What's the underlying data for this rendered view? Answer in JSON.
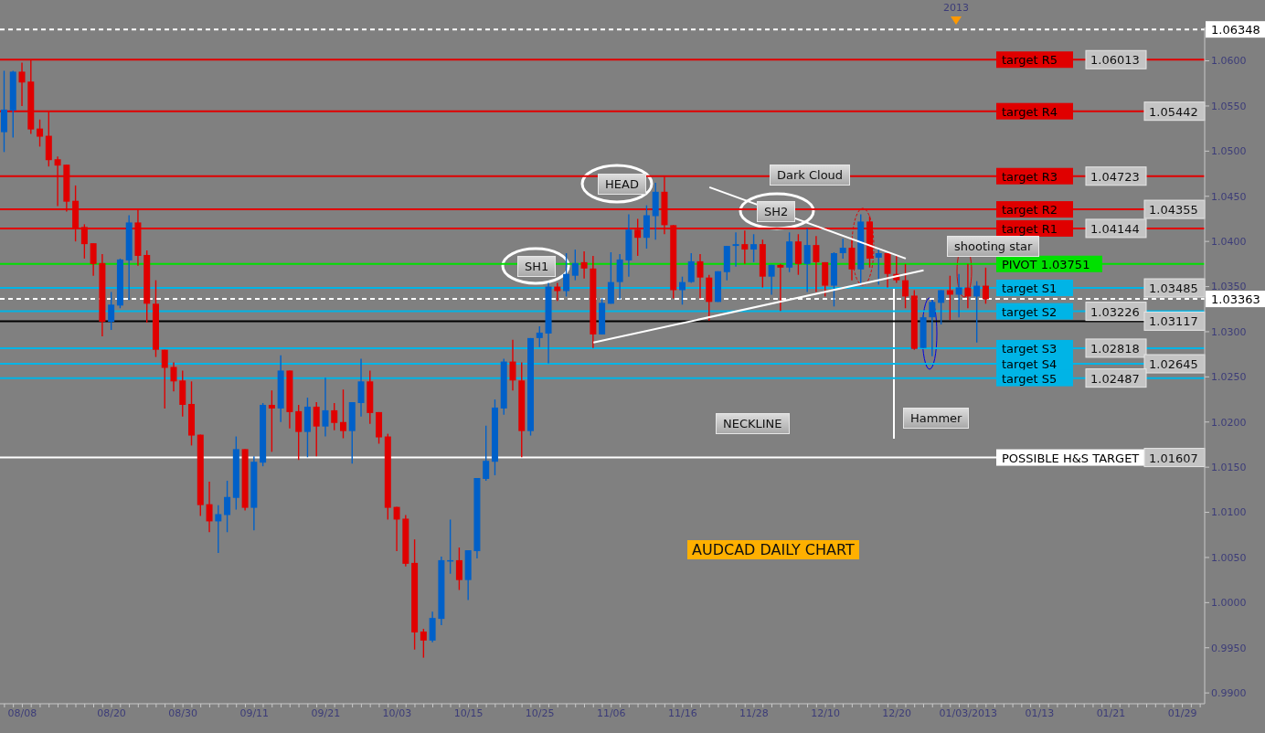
{
  "chart_data": {
    "type": "candlestick",
    "title": "AUDCAD DAILY CHART",
    "categories": [
      null,
      null,
      "08/08",
      null,
      null,
      null,
      null,
      null,
      null,
      null,
      null,
      null,
      "08/20",
      null,
      null,
      null,
      null,
      null,
      null,
      null,
      "08/30",
      null,
      null,
      null,
      null,
      null,
      null,
      null,
      "09/11",
      null,
      null,
      null,
      null,
      null,
      null,
      null,
      "09/21",
      null,
      null,
      null,
      null,
      null,
      null,
      null,
      "10/03",
      null,
      null,
      null,
      null,
      null,
      null,
      null,
      "10/15",
      null,
      null,
      null,
      null,
      null,
      null,
      null,
      "10/25",
      null,
      null,
      null,
      null,
      null,
      null,
      null,
      "11/06",
      null,
      null,
      null,
      null,
      null,
      null,
      null,
      "11/16",
      null,
      null,
      null,
      null,
      null,
      null,
      null,
      "11/28",
      null,
      null,
      null,
      null,
      null,
      null,
      null,
      "12/10",
      null,
      null,
      null,
      null,
      null,
      null,
      null,
      "12/20",
      null,
      null,
      null,
      null,
      null,
      null,
      null,
      "01/03/2013",
      null,
      null,
      null,
      null,
      null,
      null,
      null,
      "01/13",
      null,
      null,
      null,
      null,
      null,
      null,
      null,
      "01/21",
      null,
      null,
      null,
      null,
      null,
      null,
      null,
      "01/29",
      null,
      null
    ],
    "ohlc": [
      [
        1.0521,
        1.0589,
        1.0499,
        1.0546
      ],
      [
        1.0545,
        1.0589,
        1.0515,
        1.0588
      ],
      [
        1.0588,
        1.0598,
        1.055,
        1.0576
      ],
      [
        1.0577,
        1.0601,
        1.0519,
        1.0524
      ],
      [
        1.0525,
        1.0535,
        1.0505,
        1.0516
      ],
      [
        1.0517,
        1.0544,
        1.0483,
        1.049
      ],
      [
        1.0491,
        1.0494,
        1.0439,
        1.0484
      ],
      [
        1.0485,
        1.0485,
        1.0433,
        1.0444
      ],
      [
        1.0445,
        1.0462,
        1.04,
        1.0415
      ],
      [
        1.0416,
        1.0419,
        1.0381,
        1.0397
      ],
      [
        1.0398,
        1.0398,
        1.0362,
        1.0375
      ],
      [
        1.0376,
        1.0386,
        1.0295,
        1.0311
      ],
      [
        1.0311,
        1.0344,
        1.0302,
        1.033
      ],
      [
        1.0329,
        1.0381,
        1.0326,
        1.038
      ],
      [
        1.0379,
        1.0429,
        1.0335,
        1.0421
      ],
      [
        1.0421,
        1.0436,
        1.0373,
        1.0384
      ],
      [
        1.0385,
        1.039,
        1.031,
        1.0331
      ],
      [
        1.0331,
        1.0357,
        1.0272,
        1.028
      ],
      [
        1.028,
        1.028,
        1.0215,
        1.026
      ],
      [
        1.0261,
        1.0266,
        1.0234,
        1.0245
      ],
      [
        1.0246,
        1.0257,
        1.0206,
        1.0219
      ],
      [
        1.022,
        1.0245,
        1.0174,
        1.0185
      ],
      [
        1.0186,
        1.0186,
        1.0096,
        1.0108
      ],
      [
        1.0109,
        1.0134,
        1.0078,
        1.009
      ],
      [
        1.009,
        1.0108,
        1.0055,
        1.0098
      ],
      [
        1.0097,
        1.0135,
        1.0078,
        1.0117
      ],
      [
        1.0116,
        1.0184,
        1.0103,
        1.017
      ],
      [
        1.017,
        1.017,
        1.0102,
        1.0105
      ],
      [
        1.0105,
        1.0162,
        1.008,
        1.0156
      ],
      [
        1.0155,
        1.0221,
        1.0151,
        1.0219
      ],
      [
        1.0219,
        1.0235,
        1.0167,
        1.0215
      ],
      [
        1.0215,
        1.0274,
        1.02,
        1.0257
      ],
      [
        1.0257,
        1.0257,
        1.0193,
        1.0211
      ],
      [
        1.0212,
        1.0219,
        1.0158,
        1.0189
      ],
      [
        1.0189,
        1.0227,
        1.0161,
        1.0217
      ],
      [
        1.0217,
        1.0222,
        1.0162,
        1.0195
      ],
      [
        1.0195,
        1.0249,
        1.0184,
        1.0213
      ],
      [
        1.0213,
        1.0221,
        1.0191,
        1.0199
      ],
      [
        1.02,
        1.0236,
        1.0182,
        1.019
      ],
      [
        1.019,
        1.0222,
        1.0154,
        1.0222
      ],
      [
        1.0221,
        1.027,
        1.0206,
        1.0245
      ],
      [
        1.0245,
        1.0257,
        1.0198,
        1.021
      ],
      [
        1.0211,
        1.0211,
        1.0176,
        1.0183
      ],
      [
        1.0184,
        1.0187,
        1.0092,
        1.0105
      ],
      [
        1.0106,
        1.0106,
        1.0057,
        1.0092
      ],
      [
        1.0093,
        1.0097,
        1.004,
        1.0043
      ],
      [
        1.0044,
        1.007,
        0.9948,
        0.9967
      ],
      [
        0.9968,
        0.9971,
        0.9939,
        0.9958
      ],
      [
        0.9958,
        0.999,
        0.9956,
        0.9983
      ],
      [
        0.9982,
        1.0051,
        0.9975,
        1.0047
      ],
      [
        1.0046,
        1.0092,
        1.0032,
        1.0047
      ],
      [
        1.0047,
        1.0061,
        1.0014,
        1.0025
      ],
      [
        1.0025,
        1.0058,
        1.0003,
        1.0058
      ],
      [
        1.0057,
        1.0138,
        1.0049,
        1.0138
      ],
      [
        1.0137,
        1.0196,
        1.0135,
        1.0157
      ],
      [
        1.0156,
        1.0225,
        1.0141,
        1.0216
      ],
      [
        1.0215,
        1.027,
        1.0208,
        1.0267
      ],
      [
        1.0267,
        1.0291,
        1.0235,
        1.0246
      ],
      [
        1.0246,
        1.0266,
        1.0161,
        1.019
      ],
      [
        1.019,
        1.0293,
        1.0185,
        1.0293
      ],
      [
        1.0293,
        1.0306,
        1.0283,
        1.0299
      ],
      [
        1.0298,
        1.0354,
        1.0265,
        1.035
      ],
      [
        1.035,
        1.0354,
        1.0334,
        1.0345
      ],
      [
        1.0345,
        1.0387,
        1.0339,
        1.0364
      ],
      [
        1.0362,
        1.0391,
        1.0357,
        1.0376
      ],
      [
        1.0377,
        1.0389,
        1.0359,
        1.037
      ],
      [
        1.037,
        1.0384,
        1.0282,
        1.0297
      ],
      [
        1.0297,
        1.0337,
        1.0297,
        1.0332
      ],
      [
        1.0331,
        1.0388,
        1.0331,
        1.0355
      ],
      [
        1.0355,
        1.0386,
        1.0336,
        1.038
      ],
      [
        1.0379,
        1.043,
        1.0361,
        1.0413
      ],
      [
        1.0413,
        1.0425,
        1.0384,
        1.0404
      ],
      [
        1.0404,
        1.044,
        1.0392,
        1.0429
      ],
      [
        1.0428,
        1.0465,
        1.0402,
        1.0455
      ],
      [
        1.0455,
        1.0472,
        1.0408,
        1.0418
      ],
      [
        1.0418,
        1.0418,
        1.0337,
        1.0346
      ],
      [
        1.0346,
        1.0361,
        1.033,
        1.0355
      ],
      [
        1.0355,
        1.0387,
        1.0354,
        1.0378
      ],
      [
        1.0378,
        1.0386,
        1.0337,
        1.036
      ],
      [
        1.036,
        1.0363,
        1.0312,
        1.0333
      ],
      [
        1.0333,
        1.0367,
        1.0333,
        1.0367
      ],
      [
        1.0366,
        1.0395,
        1.0357,
        1.0395
      ],
      [
        1.0395,
        1.041,
        1.0372,
        1.0397
      ],
      [
        1.0397,
        1.0412,
        1.0375,
        1.0391
      ],
      [
        1.0391,
        1.0408,
        1.0377,
        1.0397
      ],
      [
        1.0397,
        1.0402,
        1.0349,
        1.0361
      ],
      [
        1.0361,
        1.0374,
        1.0341,
        1.0374
      ],
      [
        1.0374,
        1.0375,
        1.0323,
        1.0371
      ],
      [
        1.0371,
        1.041,
        1.0366,
        1.04
      ],
      [
        1.04,
        1.0408,
        1.0363,
        1.0375
      ],
      [
        1.0375,
        1.0414,
        1.0344,
        1.0396
      ],
      [
        1.0396,
        1.0406,
        1.0344,
        1.0377
      ],
      [
        1.0377,
        1.0377,
        1.0339,
        1.0351
      ],
      [
        1.0351,
        1.0388,
        1.0328,
        1.0387
      ],
      [
        1.0387,
        1.0403,
        1.0381,
        1.0393
      ],
      [
        1.0393,
        1.0402,
        1.0357,
        1.0369
      ],
      [
        1.0369,
        1.043,
        1.0351,
        1.0422
      ],
      [
        1.0422,
        1.0428,
        1.0371,
        1.0381
      ],
      [
        1.0382,
        1.0391,
        1.0352,
        1.0387
      ],
      [
        1.0387,
        1.0387,
        1.0349,
        1.0364
      ],
      [
        1.0364,
        1.0384,
        1.0354,
        1.0357
      ],
      [
        1.0357,
        1.0375,
        1.0326,
        1.0339
      ],
      [
        1.034,
        1.0346,
        1.028,
        1.0281
      ],
      [
        1.0282,
        1.0319,
        1.0282,
        1.0316
      ],
      [
        1.0316,
        1.0335,
        1.0273,
        1.0333
      ],
      [
        1.0332,
        1.0346,
        1.0308,
        1.0346
      ],
      [
        1.0346,
        1.0362,
        1.0313,
        1.0341
      ],
      [
        1.0341,
        1.0364,
        1.0316,
        1.0349
      ],
      [
        1.0349,
        1.0375,
        1.0326,
        1.0339
      ],
      [
        1.0339,
        1.0356,
        1.0288,
        1.0351
      ],
      [
        1.0351,
        1.0371,
        1.0331,
        1.0336
      ],
      null,
      null,
      null,
      null,
      null,
      null,
      null,
      null,
      null,
      null,
      null,
      null,
      null,
      null,
      null,
      null,
      null,
      null,
      null,
      null,
      null,
      null,
      null,
      null
    ],
    "colors": [
      "#0060c8",
      "#0060c8",
      "#e00000",
      "#e00000",
      "#e00000",
      "#e00000",
      "#e00000",
      "#e00000",
      "#e00000",
      "#e00000",
      "#e00000",
      "#e00000",
      "#0060c8",
      "#0060c8",
      "#0060c8",
      "#e00000",
      "#e00000",
      "#e00000",
      "#e00000",
      "#e00000",
      "#e00000",
      "#e00000",
      "#e00000",
      "#e00000",
      "#0060c8",
      "#0060c8",
      "#0060c8",
      "#e00000",
      "#0060c8",
      "#0060c8",
      "#e00000",
      "#0060c8",
      "#e00000",
      "#e00000",
      "#0060c8",
      "#e00000",
      "#0060c8",
      "#e00000",
      "#e00000",
      "#0060c8",
      "#0060c8",
      "#e00000",
      "#e00000",
      "#e00000",
      "#e00000",
      "#e00000",
      "#e00000",
      "#e00000",
      "#0060c8",
      "#0060c8",
      "#0060c8",
      "#e00000",
      "#0060c8",
      "#0060c8",
      "#0060c8",
      "#0060c8",
      "#0060c8",
      "#e00000",
      "#e00000",
      "#0060c8",
      "#0060c8",
      "#0060c8",
      "#e00000",
      "#0060c8",
      "#0060c8",
      "#e00000",
      "#e00000",
      "#0060c8",
      "#0060c8",
      "#0060c8",
      "#0060c8",
      "#e00000",
      "#0060c8",
      "#0060c8",
      "#e00000",
      "#e00000",
      "#0060c8",
      "#0060c8",
      "#e00000",
      "#e00000",
      "#0060c8",
      "#0060c8",
      "#0060c8",
      "#e00000",
      "#0060c8",
      "#e00000",
      "#0060c8",
      "#e00000",
      "#0060c8",
      "#e00000",
      "#0060c8",
      "#e00000",
      "#e00000",
      "#0060c8",
      "#0060c8",
      "#e00000",
      "#0060c8",
      "#e00000",
      "#0060c8",
      "#e00000",
      "#e00000",
      "#e00000",
      "#e00000",
      "#0060c8",
      "#0060c8",
      "#0060c8",
      "#e00000",
      "#0060c8",
      "#e00000",
      "#0060c8",
      "#e00000",
      null,
      null,
      null,
      null,
      null,
      null,
      null,
      null,
      null,
      null,
      null,
      null,
      null,
      null,
      null,
      null,
      null,
      null,
      null,
      null,
      null,
      null,
      null,
      null
    ],
    "series": [
      {
        "type": "line",
        "color": "#ffffff",
        "values": [
          null,
          null,
          null,
          null,
          null,
          null,
          null,
          null,
          null,
          null,
          null,
          null,
          null,
          null,
          null,
          null,
          null,
          null,
          null,
          null,
          null,
          null,
          null,
          null,
          null,
          null,
          null,
          null,
          null,
          null,
          null,
          null,
          null,
          null,
          null,
          null,
          null,
          null,
          null,
          null,
          null,
          null,
          null,
          null,
          null,
          null,
          null,
          null,
          null,
          null,
          null,
          null,
          null,
          null,
          null,
          null,
          null,
          null,
          null,
          null,
          null,
          null,
          null,
          null,
          null,
          null,
          null,
          null,
          null,
          null,
          null,
          null,
          null,
          null,
          null,
          null,
          null,
          null,
          null,
          1.046,
          null,
          null,
          null,
          null,
          null,
          null,
          null,
          null,
          null,
          null,
          null,
          null,
          null,
          null,
          null,
          null,
          null,
          null,
          null,
          null,
          null,
          1.0381,
          null,
          null,
          null,
          null,
          null,
          null,
          null,
          null,
          null,
          null,
          null,
          null,
          null,
          null,
          null,
          null,
          null,
          null,
          null,
          null,
          null,
          null,
          null,
          null,
          null,
          null,
          null,
          null,
          null,
          null,
          null,
          null,
          null
        ]
      },
      {
        "type": "line",
        "color": "#ffffff",
        "values": [
          null,
          null,
          null,
          null,
          null,
          null,
          null,
          null,
          null,
          null,
          null,
          null,
          null,
          null,
          null,
          null,
          null,
          null,
          null,
          null,
          null,
          null,
          null,
          null,
          null,
          null,
          null,
          null,
          null,
          null,
          null,
          null,
          null,
          null,
          null,
          null,
          null,
          null,
          null,
          null,
          null,
          null,
          null,
          null,
          null,
          null,
          null,
          null,
          null,
          null,
          null,
          null,
          null,
          null,
          null,
          null,
          null,
          null,
          null,
          null,
          null,
          null,
          null,
          null,
          null,
          null,
          1.0288,
          null,
          null,
          null,
          null,
          null,
          null,
          null,
          null,
          null,
          null,
          null,
          null,
          null,
          null,
          null,
          null,
          null,
          null,
          null,
          null,
          null,
          null,
          null,
          null,
          null,
          null,
          null,
          null,
          null,
          null,
          null,
          null,
          null,
          null,
          null,
          null,
          1.0368,
          null,
          null,
          null,
          null,
          null,
          null,
          null,
          null,
          null,
          null,
          null,
          null,
          null,
          null,
          null,
          null,
          null,
          null,
          null,
          null,
          null,
          null,
          null,
          null,
          null,
          null,
          null,
          null,
          null,
          null,
          null
        ]
      }
    ],
    "ylim": [
      0.9888,
      1.0637
    ],
    "yticks": [
      {
        "value": 0.99,
        "label": "0.9900"
      },
      {
        "value": 0.995,
        "label": "0.9950"
      },
      {
        "value": 1.0,
        "label": "1.0000"
      },
      {
        "value": 1.005,
        "label": "1.0050"
      },
      {
        "value": 1.01,
        "label": "1.0100"
      },
      {
        "value": 1.015,
        "label": "1.0150"
      },
      {
        "value": 1.02,
        "label": "1.0200"
      },
      {
        "value": 1.025,
        "label": "1.0250"
      },
      {
        "value": 1.03,
        "label": "1.0300"
      },
      {
        "value": 1.035,
        "label": "1.0350"
      },
      {
        "value": 1.04,
        "label": "1.0400"
      },
      {
        "value": 1.045,
        "label": "1.0450"
      },
      {
        "value": 1.05,
        "label": "1.0500"
      },
      {
        "value": 1.055,
        "label": "1.0550"
      },
      {
        "value": 1.06,
        "label": "1.0600"
      }
    ],
    "ref_lines": [
      {
        "axis": "y",
        "value": 1.06013,
        "label": "target R5",
        "color": "#e00000"
      },
      {
        "axis": "y",
        "value": 1.05442,
        "label": "target R4",
        "color": "#e00000"
      },
      {
        "axis": "y",
        "value": 1.04723,
        "label": "target R3",
        "color": "#e00000"
      },
      {
        "axis": "y",
        "value": 1.04355,
        "label": "target R2",
        "color": "#e00000"
      },
      {
        "axis": "y",
        "value": 1.04144,
        "label": "target R1",
        "color": "#e00000"
      },
      {
        "axis": "y",
        "value": 1.03751,
        "label": "PIVOT 1.03751",
        "color": "#00e000"
      },
      {
        "axis": "y",
        "value": 1.03485,
        "label": "target S1",
        "color": "#00b4e6"
      },
      {
        "axis": "y",
        "value": 1.03226,
        "label": "target S2",
        "color": "#00b4e6"
      },
      {
        "axis": "y",
        "value": 1.03117
      },
      {
        "axis": "y",
        "value": 1.02818,
        "label": "target S3",
        "color": "#00b4e6"
      },
      {
        "axis": "y",
        "value": 1.02645,
        "label": "target S4",
        "color": "#00b4e6"
      },
      {
        "axis": "y",
        "value": 1.02487,
        "label": "target S5",
        "color": "#00b4e6"
      },
      {
        "axis": "y",
        "value": 1.01607,
        "label": "POSSIBLE H&S TARGET",
        "color": "#ffffff"
      },
      {
        "axis": "y",
        "value": 1.06348,
        "label": "1.06348",
        "color": "#ffffff",
        "line_style": "dashed"
      },
      {
        "axis": "y",
        "value": 1.03363,
        "label": "1.03363",
        "color": "#ffffff",
        "line_style": "dashed"
      }
    ],
    "annotations": [
      {
        "text": "1.06013",
        "y": 1.06013
      },
      {
        "text": "1.05442",
        "y": 1.05442
      },
      {
        "text": "1.04723",
        "y": 1.04723
      },
      {
        "text": "1.04355",
        "y": 1.04355
      },
      {
        "text": "1.04144",
        "y": 1.04144
      },
      {
        "text": "1.03485",
        "y": 1.03485
      },
      {
        "text": "1.03226",
        "y": 1.03226
      },
      {
        "text": "1.03117",
        "y": 1.03117
      },
      {
        "text": "1.02818",
        "y": 1.02818
      },
      {
        "text": "1.02645",
        "y": 1.02645
      },
      {
        "text": "1.02487",
        "y": 1.02487
      },
      {
        "text": "1.01607",
        "y": 1.01607
      },
      "SH1",
      "HEAD",
      "SH2",
      "Dark Cloud",
      "shooting star",
      "Hammer",
      "NECKLINE",
      "2013"
    ]
  }
}
